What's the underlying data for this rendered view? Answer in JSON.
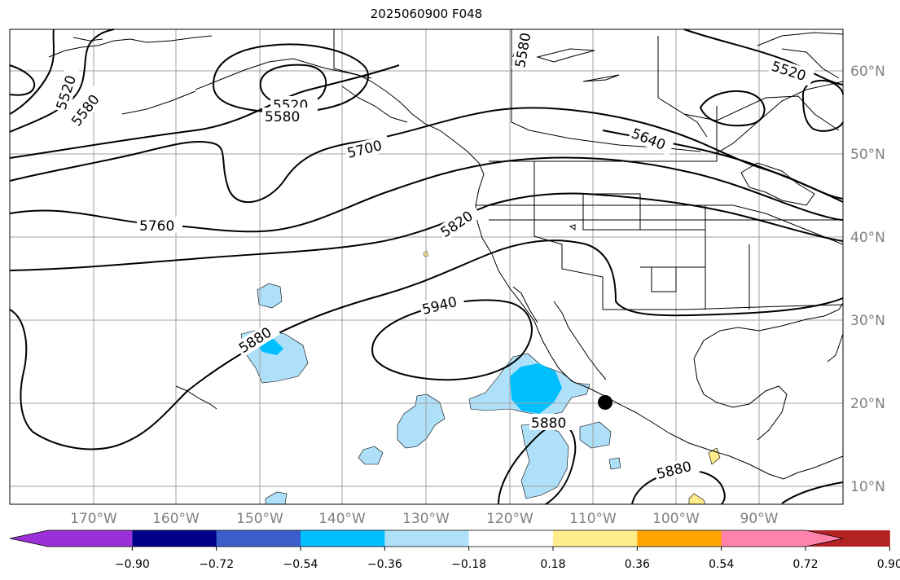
{
  "title": "2025060900 F048",
  "map": {
    "longitude_labels": [
      "170°W",
      "160°W",
      "150°W",
      "140°W",
      "130°W",
      "120°W",
      "110°W",
      "100°W",
      "90°W"
    ],
    "latitude_labels": [
      "60°N",
      "50°N",
      "40°N",
      "30°N",
      "20°N",
      "10°N"
    ],
    "contour_labels": [
      "5520",
      "5580",
      "5520",
      "5580",
      "5580",
      "5520",
      "5640",
      "5700",
      "5760",
      "5820",
      "5940",
      "5880",
      "5880",
      "5880"
    ],
    "marker": "black-dot",
    "gridline_color": "#a0a0a0",
    "contour_color": "#000000"
  },
  "colorbar": {
    "ticks": [
      "−0.90",
      "−0.72",
      "−0.54",
      "−0.36",
      "−0.18",
      "0.18",
      "0.36",
      "0.54",
      "0.72",
      "0.90"
    ],
    "colors": [
      "#9b30d9",
      "#00008b",
      "#3a5fcd",
      "#00bfff",
      "#aee0fa",
      "#ffffff",
      "#ffec8b",
      "#ffa500",
      "#ff4500",
      "#b22222",
      "#ff82ab"
    ]
  }
}
